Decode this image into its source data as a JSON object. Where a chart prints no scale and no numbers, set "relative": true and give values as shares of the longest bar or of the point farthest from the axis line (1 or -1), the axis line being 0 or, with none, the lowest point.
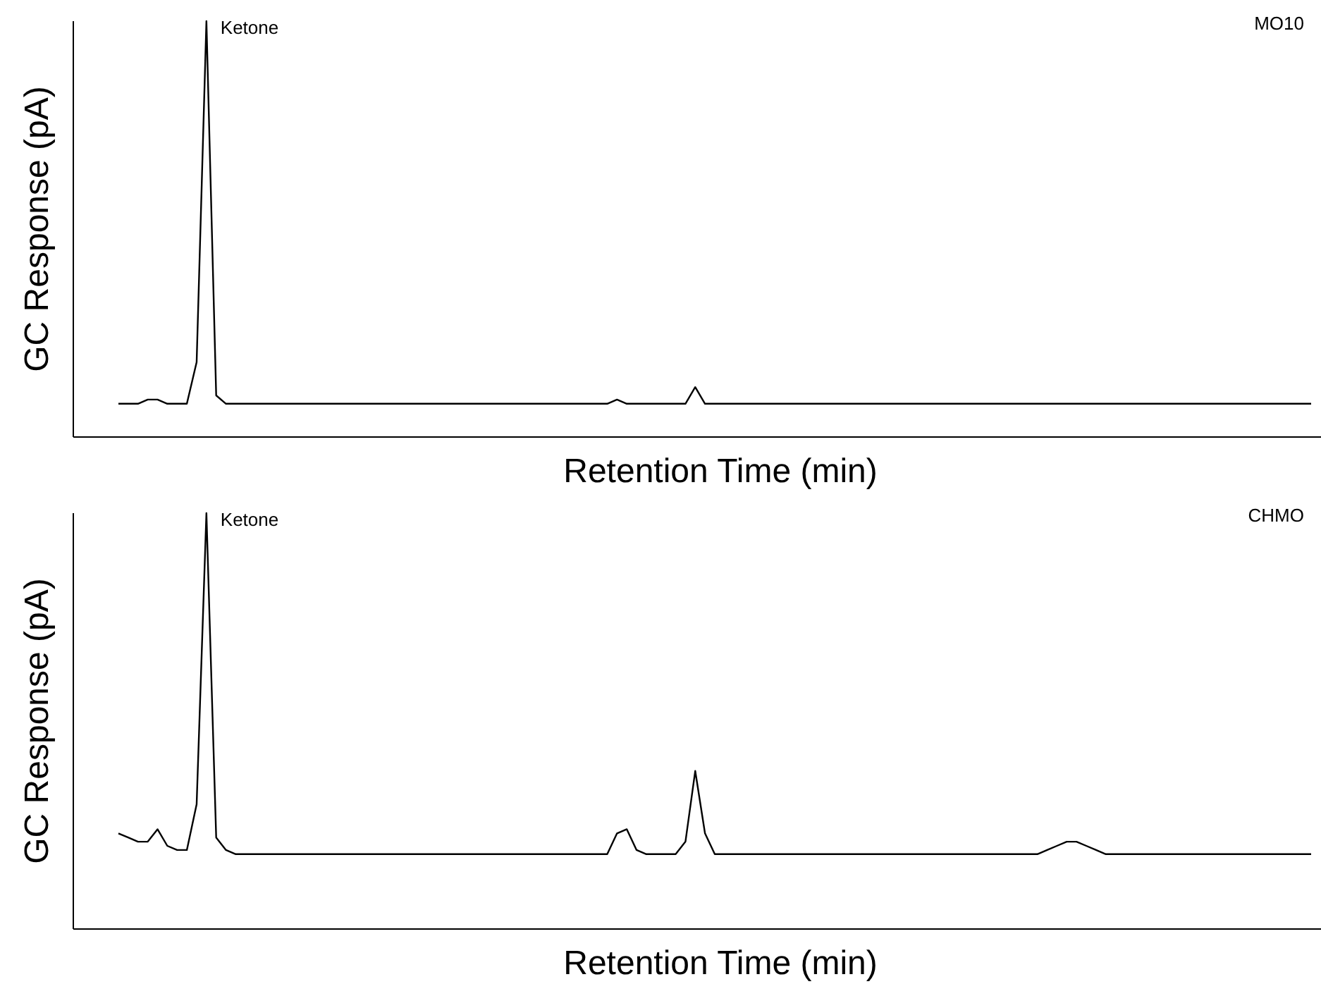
{
  "chart_data": [
    {
      "type": "line",
      "title": "MO10",
      "xlabel": "Retention Time (min)",
      "ylabel": "GC Response (pA)",
      "relative": true,
      "categories": [
        null,
        null,
        null,
        null,
        null,
        null,
        null,
        null,
        null,
        null,
        null,
        null,
        null,
        null,
        null,
        null,
        null,
        null,
        null,
        null,
        null,
        null,
        null,
        null,
        null,
        null,
        null,
        null,
        null,
        null,
        null,
        null,
        null,
        null,
        null,
        null,
        null,
        null,
        null,
        null,
        null,
        null,
        null,
        null,
        null,
        null,
        null,
        null,
        null,
        null,
        null,
        null,
        null,
        null,
        null,
        null,
        null,
        null,
        null,
        null,
        null,
        null,
        null,
        null,
        null,
        null,
        null,
        null,
        null,
        null,
        null,
        null,
        null,
        null,
        null,
        null,
        null,
        null,
        null,
        null,
        null,
        null,
        null,
        null,
        null,
        null,
        null,
        null,
        null,
        null,
        null,
        null,
        null,
        null,
        null,
        null,
        null,
        null,
        null,
        null,
        null,
        null,
        null,
        null,
        null,
        null,
        null,
        null,
        null,
        null,
        null,
        null,
        null,
        null,
        null,
        null,
        null,
        null,
        null,
        null,
        null,
        null,
        null
      ],
      "series": [
        {
          "color": "#000000",
          "values": [
            0.08,
            0.08,
            0.08,
            0.09,
            0.09,
            0.08,
            0.08,
            0.08,
            0.18,
            1,
            0.1,
            0.08,
            0.08,
            0.08,
            0.08,
            0.08,
            0.08,
            0.08,
            0.08,
            0.08,
            0.08,
            0.08,
            0.08,
            0.08,
            0.08,
            0.08,
            0.08,
            0.08,
            0.08,
            0.08,
            0.08,
            0.08,
            0.08,
            0.08,
            0.08,
            0.08,
            0.08,
            0.08,
            0.08,
            0.08,
            0.08,
            0.08,
            0.08,
            0.08,
            0.08,
            0.08,
            0.08,
            0.08,
            0.08,
            0.08,
            0.08,
            0.09,
            0.08,
            0.08,
            0.08,
            0.08,
            0.08,
            0.08,
            0.08,
            0.12,
            0.08,
            0.08,
            0.08,
            0.08,
            0.08,
            0.08,
            0.08,
            0.08,
            0.08,
            0.08,
            0.08,
            0.08,
            0.08,
            0.08,
            0.08,
            0.08,
            0.08,
            0.08,
            0.08,
            0.08,
            0.08,
            0.08,
            0.08,
            0.08,
            0.08,
            0.08,
            0.08,
            0.08,
            0.08,
            0.08,
            0.08,
            0.08,
            0.08,
            0.08,
            0.08,
            0.08,
            0.08,
            0.08,
            0.08,
            0.08,
            0.08,
            0.08,
            0.08,
            0.08,
            0.08,
            0.08,
            0.08,
            0.08,
            0.08,
            0.08,
            0.08,
            0.08,
            0.08,
            0.08,
            0.08,
            0.08,
            0.08,
            0.08,
            0.08,
            0.08,
            0.08,
            0.08,
            0.08
          ]
        }
      ],
      "annotations": [
        "Ketone"
      ]
    },
    {
      "type": "line",
      "title": "CHMO",
      "xlabel": "Retention Time (min)",
      "ylabel": "GC Response (pA)",
      "relative": true,
      "categories": [
        null,
        null,
        null,
        null,
        null,
        null,
        null,
        null,
        null,
        null,
        null,
        null,
        null,
        null,
        null,
        null,
        null,
        null,
        null,
        null,
        null,
        null,
        null,
        null,
        null,
        null,
        null,
        null,
        null,
        null,
        null,
        null,
        null,
        null,
        null,
        null,
        null,
        null,
        null,
        null,
        null,
        null,
        null,
        null,
        null,
        null,
        null,
        null,
        null,
        null,
        null,
        null,
        null,
        null,
        null,
        null,
        null,
        null,
        null,
        null,
        null,
        null,
        null,
        null,
        null,
        null,
        null,
        null,
        null,
        null,
        null,
        null,
        null,
        null,
        null,
        null,
        null,
        null,
        null,
        null,
        null,
        null,
        null,
        null,
        null,
        null,
        null,
        null,
        null,
        null,
        null,
        null,
        null,
        null,
        null,
        null,
        null,
        null,
        null,
        null,
        null,
        null,
        null,
        null,
        null,
        null,
        null,
        null,
        null,
        null,
        null,
        null,
        null,
        null,
        null,
        null,
        null,
        null,
        null,
        null,
        null,
        null,
        null
      ],
      "series": [
        {
          "color": "#000000",
          "values": [
            0.23,
            0.22,
            0.21,
            0.21,
            0.24,
            0.2,
            0.19,
            0.19,
            0.3,
            1,
            0.22,
            0.19,
            0.18,
            0.18,
            0.18,
            0.18,
            0.18,
            0.18,
            0.18,
            0.18,
            0.18,
            0.18,
            0.18,
            0.18,
            0.18,
            0.18,
            0.18,
            0.18,
            0.18,
            0.18,
            0.18,
            0.18,
            0.18,
            0.18,
            0.18,
            0.18,
            0.18,
            0.18,
            0.18,
            0.18,
            0.18,
            0.18,
            0.18,
            0.18,
            0.18,
            0.18,
            0.18,
            0.18,
            0.18,
            0.18,
            0.18,
            0.23,
            0.24,
            0.19,
            0.18,
            0.18,
            0.18,
            0.18,
            0.21,
            0.38,
            0.23,
            0.18,
            0.18,
            0.18,
            0.18,
            0.18,
            0.18,
            0.18,
            0.18,
            0.18,
            0.18,
            0.18,
            0.18,
            0.18,
            0.18,
            0.18,
            0.18,
            0.18,
            0.18,
            0.18,
            0.18,
            0.18,
            0.18,
            0.18,
            0.18,
            0.18,
            0.18,
            0.18,
            0.18,
            0.18,
            0.18,
            0.18,
            0.18,
            0.18,
            0.18,
            0.19,
            0.2,
            0.21,
            0.21,
            0.2,
            0.19,
            0.18,
            0.18,
            0.18,
            0.18,
            0.18,
            0.18,
            0.18,
            0.18,
            0.18,
            0.18,
            0.18,
            0.18,
            0.18,
            0.18,
            0.18,
            0.18,
            0.18,
            0.18,
            0.18,
            0.18,
            0.18,
            0.18
          ]
        }
      ],
      "annotations": [
        "Ketone"
      ]
    }
  ]
}
